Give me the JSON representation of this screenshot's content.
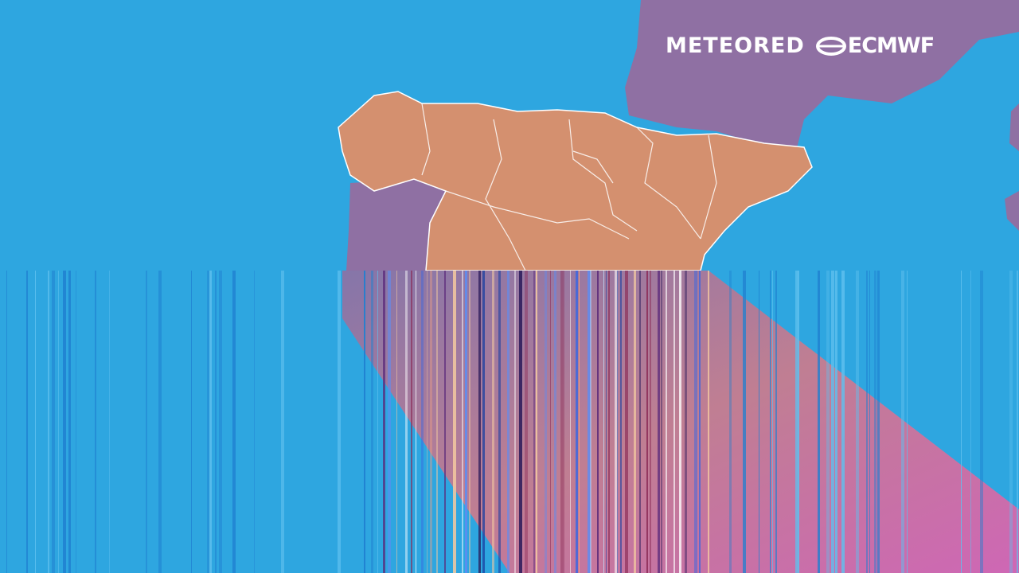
{
  "logos": {
    "meteored": "METEORED",
    "ecmwf": "ECMWF"
  },
  "colors": {
    "ocean": "#2ea6e0",
    "neighbor_land": "#8f70a3",
    "highlight_land": "#d4906f",
    "borders": "#ffffff"
  }
}
